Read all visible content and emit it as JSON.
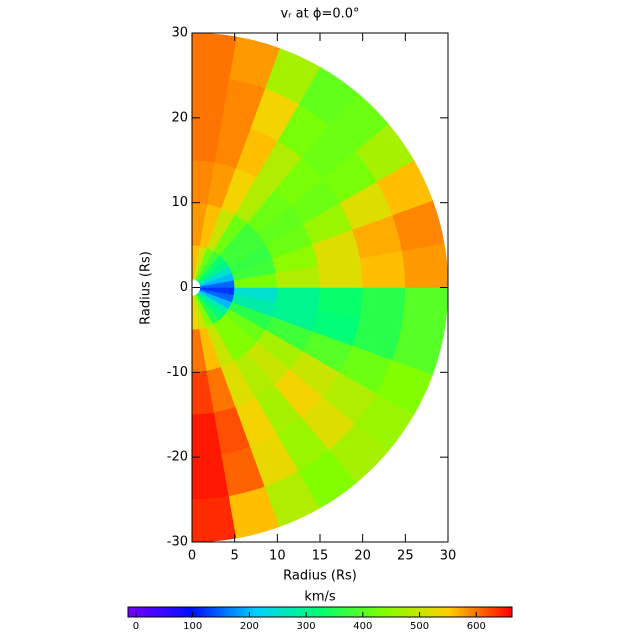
{
  "chart_data": {
    "type": "polar-heatmap",
    "title": "vᵣ at ϕ=0.0°",
    "xlabel": "Radius (Rs)",
    "ylabel": "Radius (Rs)",
    "xlim": [
      0,
      30
    ],
    "ylim": [
      -30,
      30
    ],
    "xticks": [
      0,
      5,
      10,
      15,
      20,
      25,
      30
    ],
    "yticks": [
      -30,
      -20,
      -10,
      0,
      10,
      20,
      30
    ],
    "r_edges": [
      1,
      5,
      10,
      15,
      20,
      25,
      30
    ],
    "theta_edges": [
      -90,
      -80,
      -70,
      -60,
      -50,
      -40,
      -30,
      -20,
      -10,
      0,
      10,
      20,
      30,
      40,
      50,
      60,
      70,
      80,
      90
    ],
    "values": [
      [
        540,
        600,
        630,
        650,
        650,
        640
      ],
      [
        500,
        560,
        600,
        620,
        610,
        560
      ],
      [
        440,
        500,
        520,
        540,
        530,
        480
      ],
      [
        360,
        440,
        480,
        470,
        460,
        440
      ],
      [
        320,
        440,
        500,
        540,
        520,
        470
      ],
      [
        280,
        420,
        470,
        500,
        480,
        460
      ],
      [
        200,
        360,
        380,
        400,
        420,
        440
      ],
      [
        150,
        280,
        300,
        320,
        360,
        400
      ],
      [
        120,
        250,
        300,
        330,
        360,
        400
      ],
      [
        150,
        430,
        480,
        520,
        560,
        580
      ],
      [
        200,
        380,
        450,
        520,
        570,
        590
      ],
      [
        250,
        370,
        420,
        460,
        520,
        560
      ],
      [
        300,
        380,
        410,
        420,
        430,
        470
      ],
      [
        330,
        380,
        420,
        430,
        420,
        420
      ],
      [
        380,
        420,
        480,
        480,
        430,
        410
      ],
      [
        420,
        500,
        540,
        560,
        540,
        470
      ],
      [
        500,
        560,
        580,
        590,
        590,
        580
      ],
      [
        560,
        580,
        590,
        600,
        600,
        600
      ]
    ],
    "colorbar_label": "km/s",
    "clim": [
      -14,
      663
    ],
    "cticks": [
      0,
      100,
      200,
      300,
      400,
      500,
      600
    ],
    "colormap": [
      "#7800ff",
      "#0010ff",
      "#00d0ff",
      "#00ff70",
      "#80ff00",
      "#ffd000",
      "#ff0000"
    ]
  }
}
